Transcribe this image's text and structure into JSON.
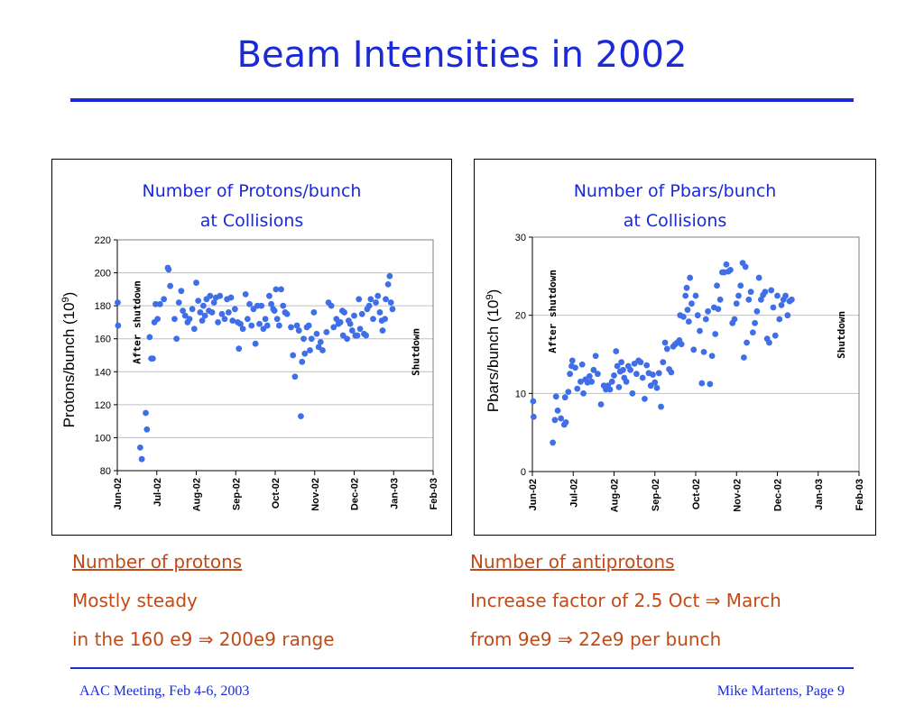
{
  "slide": {
    "title": "Beam Intensities in 2002",
    "footer_left": "AAC Meeting, Feb 4-6, 2003",
    "footer_right": "Mike Martens, Page 9"
  },
  "notes": {
    "left": {
      "heading": "Number of protons ",
      "line1": "Mostly steady",
      "line2": "in the 160 e9 ⇒ 200e9 range"
    },
    "right": {
      "heading": "Number of antiprotons ",
      "line1": "Increase factor of 2.5 Oct ⇒ March",
      "line2": "from 9e9 ⇒ 22e9 per bunch"
    }
  },
  "colors": {
    "accent": "#1a2ad8",
    "marker": "#3f6ee8",
    "note_text": "#c24a16"
  },
  "chart_data": [
    {
      "type": "scatter",
      "title_line1": "Number of Protons/bunch",
      "title_line2": "at Collisions",
      "ylabel_main": "Protons/bunch (10",
      "ylabel_exp": "9",
      "ylabel_close": ")",
      "xlabels": [
        "Jun-02",
        "Jul-02",
        "Aug-02",
        "Sep-02",
        "Oct-02",
        "Nov-02",
        "Dec-02",
        "Jan-03",
        "Feb-03"
      ],
      "xlim": [
        0,
        8
      ],
      "ylim": [
        80,
        220
      ],
      "yticks": [
        80,
        100,
        120,
        140,
        160,
        180,
        200,
        220
      ],
      "annotations": [
        {
          "text": "After shutdown",
          "x": 0.58,
          "y": 170
        },
        {
          "text": "Shutdown",
          "x": 7.65,
          "y": 152
        }
      ],
      "points": [
        [
          0.01,
          182
        ],
        [
          0.02,
          168
        ],
        [
          0.58,
          94
        ],
        [
          0.62,
          87
        ],
        [
          0.72,
          115
        ],
        [
          0.75,
          105
        ],
        [
          0.82,
          161
        ],
        [
          0.86,
          148
        ],
        [
          0.9,
          148
        ],
        [
          0.94,
          170
        ],
        [
          0.97,
          181
        ],
        [
          1.02,
          172
        ],
        [
          1.08,
          181
        ],
        [
          1.18,
          184
        ],
        [
          1.28,
          203
        ],
        [
          1.3,
          202
        ],
        [
          1.34,
          192
        ],
        [
          1.45,
          172
        ],
        [
          1.5,
          160
        ],
        [
          1.56,
          182
        ],
        [
          1.62,
          189
        ],
        [
          1.66,
          177
        ],
        [
          1.72,
          174
        ],
        [
          1.78,
          170
        ],
        [
          1.83,
          172
        ],
        [
          1.9,
          178
        ],
        [
          1.95,
          166
        ],
        [
          2.0,
          194
        ],
        [
          2.05,
          183
        ],
        [
          2.1,
          176
        ],
        [
          2.15,
          171
        ],
        [
          2.18,
          180
        ],
        [
          2.22,
          174
        ],
        [
          2.26,
          184
        ],
        [
          2.32,
          177
        ],
        [
          2.35,
          186
        ],
        [
          2.4,
          176
        ],
        [
          2.45,
          182
        ],
        [
          2.5,
          185
        ],
        [
          2.55,
          170
        ],
        [
          2.6,
          186
        ],
        [
          2.65,
          175
        ],
        [
          2.72,
          172
        ],
        [
          2.78,
          184
        ],
        [
          2.82,
          176
        ],
        [
          2.88,
          185
        ],
        [
          2.92,
          171
        ],
        [
          2.98,
          178
        ],
        [
          3.05,
          170
        ],
        [
          3.08,
          154
        ],
        [
          3.12,
          169
        ],
        [
          3.18,
          166
        ],
        [
          3.25,
          187
        ],
        [
          3.3,
          172
        ],
        [
          3.35,
          181
        ],
        [
          3.4,
          168
        ],
        [
          3.45,
          178
        ],
        [
          3.5,
          157
        ],
        [
          3.55,
          180
        ],
        [
          3.6,
          169
        ],
        [
          3.65,
          180
        ],
        [
          3.7,
          166
        ],
        [
          3.75,
          172
        ],
        [
          3.8,
          168
        ],
        [
          3.85,
          186
        ],
        [
          3.9,
          181
        ],
        [
          3.95,
          178
        ],
        [
          3.98,
          177
        ],
        [
          4.02,
          190
        ],
        [
          4.05,
          172
        ],
        [
          4.1,
          168
        ],
        [
          4.15,
          190
        ],
        [
          4.2,
          180
        ],
        [
          4.25,
          176
        ],
        [
          4.3,
          175
        ],
        [
          4.4,
          167
        ],
        [
          4.45,
          150
        ],
        [
          4.5,
          137
        ],
        [
          4.55,
          168
        ],
        [
          4.6,
          165
        ],
        [
          4.65,
          113
        ],
        [
          4.68,
          146
        ],
        [
          4.72,
          160
        ],
        [
          4.75,
          151
        ],
        [
          4.8,
          167
        ],
        [
          4.85,
          168
        ],
        [
          4.88,
          153
        ],
        [
          4.92,
          160
        ],
        [
          4.98,
          176
        ],
        [
          5.05,
          163
        ],
        [
          5.1,
          155
        ],
        [
          5.15,
          158
        ],
        [
          5.2,
          153
        ],
        [
          5.3,
          164
        ],
        [
          5.35,
          182
        ],
        [
          5.42,
          180
        ],
        [
          5.48,
          167
        ],
        [
          5.55,
          172
        ],
        [
          5.6,
          169
        ],
        [
          5.65,
          170
        ],
        [
          5.7,
          177
        ],
        [
          5.72,
          162
        ],
        [
          5.75,
          176
        ],
        [
          5.82,
          160
        ],
        [
          5.86,
          171
        ],
        [
          5.9,
          169
        ],
        [
          5.95,
          165
        ],
        [
          6.0,
          174
        ],
        [
          6.03,
          162
        ],
        [
          6.08,
          162
        ],
        [
          6.12,
          184
        ],
        [
          6.15,
          166
        ],
        [
          6.2,
          175
        ],
        [
          6.25,
          163
        ],
        [
          6.3,
          162
        ],
        [
          6.33,
          178
        ],
        [
          6.38,
          180
        ],
        [
          6.42,
          184
        ],
        [
          6.48,
          172
        ],
        [
          6.55,
          182
        ],
        [
          6.6,
          186
        ],
        [
          6.65,
          176
        ],
        [
          6.7,
          171
        ],
        [
          6.72,
          165
        ],
        [
          6.78,
          172
        ],
        [
          6.8,
          184
        ],
        [
          6.86,
          193
        ],
        [
          6.9,
          198
        ],
        [
          6.93,
          182
        ],
        [
          6.97,
          178
        ]
      ]
    },
    {
      "type": "scatter",
      "title_line1": "Number of Pbars/bunch",
      "title_line2": "at Collisions",
      "ylabel_main": "Pbars/bunch (10",
      "ylabel_exp": "9",
      "ylabel_close": ")",
      "xlabels": [
        "Jun-02",
        "Jul-02",
        "Aug-02",
        "Sep-02",
        "Oct-02",
        "Nov-02",
        "Dec-02",
        "Jan-03",
        "Feb-03"
      ],
      "xlim": [
        0,
        8
      ],
      "ylim": [
        0,
        30
      ],
      "yticks": [
        0,
        10,
        20,
        30
      ],
      "annotations": [
        {
          "text": "After shutdown",
          "x": 0.58,
          "y": 20.5
        },
        {
          "text": "Shutdown",
          "x": 7.65,
          "y": 17.5
        }
      ],
      "points": [
        [
          0.02,
          9.0
        ],
        [
          0.03,
          7.0
        ],
        [
          0.5,
          3.7
        ],
        [
          0.55,
          6.6
        ],
        [
          0.58,
          9.6
        ],
        [
          0.62,
          7.8
        ],
        [
          0.7,
          6.8
        ],
        [
          0.78,
          6.0
        ],
        [
          0.8,
          9.5
        ],
        [
          0.82,
          6.3
        ],
        [
          0.88,
          10.2
        ],
        [
          0.92,
          12.5
        ],
        [
          0.96,
          13.5
        ],
        [
          0.98,
          14.2
        ],
        [
          1.05,
          13.3
        ],
        [
          1.1,
          10.6
        ],
        [
          1.18,
          11.5
        ],
        [
          1.22,
          13.7
        ],
        [
          1.25,
          10.0
        ],
        [
          1.3,
          11.8
        ],
        [
          1.35,
          11.4
        ],
        [
          1.4,
          12.2
        ],
        [
          1.45,
          11.5
        ],
        [
          1.5,
          13.0
        ],
        [
          1.55,
          14.8
        ],
        [
          1.6,
          12.5
        ],
        [
          1.68,
          8.6
        ],
        [
          1.75,
          11.0
        ],
        [
          1.8,
          10.5
        ],
        [
          1.85,
          11.0
        ],
        [
          1.9,
          10.5
        ],
        [
          1.95,
          11.5
        ],
        [
          2.0,
          12.3
        ],
        [
          2.05,
          15.4
        ],
        [
          2.08,
          13.5
        ],
        [
          2.12,
          10.8
        ],
        [
          2.15,
          12.8
        ],
        [
          2.18,
          14.0
        ],
        [
          2.22,
          13.0
        ],
        [
          2.25,
          12.0
        ],
        [
          2.3,
          11.5
        ],
        [
          2.35,
          13.5
        ],
        [
          2.4,
          13.0
        ],
        [
          2.45,
          10.0
        ],
        [
          2.5,
          13.8
        ],
        [
          2.55,
          12.5
        ],
        [
          2.6,
          14.2
        ],
        [
          2.65,
          14.0
        ],
        [
          2.7,
          12.0
        ],
        [
          2.75,
          9.3
        ],
        [
          2.8,
          13.6
        ],
        [
          2.85,
          12.6
        ],
        [
          2.9,
          11.0
        ],
        [
          2.95,
          12.4
        ],
        [
          3.0,
          11.4
        ],
        [
          3.05,
          10.7
        ],
        [
          3.1,
          12.6
        ],
        [
          3.15,
          8.3
        ],
        [
          3.2,
          14.0
        ],
        [
          3.25,
          16.5
        ],
        [
          3.3,
          15.7
        ],
        [
          3.35,
          13.1
        ],
        [
          3.4,
          12.7
        ],
        [
          3.45,
          16.0
        ],
        [
          3.5,
          16.3
        ],
        [
          3.55,
          16.5
        ],
        [
          3.6,
          16.8
        ],
        [
          3.62,
          20.0
        ],
        [
          3.65,
          16.3
        ],
        [
          3.7,
          19.8
        ],
        [
          3.75,
          22.5
        ],
        [
          3.78,
          23.5
        ],
        [
          3.8,
          20.7
        ],
        [
          3.83,
          19.2
        ],
        [
          3.86,
          24.8
        ],
        [
          3.9,
          21.5
        ],
        [
          3.95,
          15.6
        ],
        [
          4.0,
          22.5
        ],
        [
          4.05,
          20.0
        ],
        [
          4.1,
          18.0
        ],
        [
          4.15,
          11.3
        ],
        [
          4.2,
          15.3
        ],
        [
          4.25,
          19.5
        ],
        [
          4.3,
          20.5
        ],
        [
          4.35,
          11.2
        ],
        [
          4.4,
          14.8
        ],
        [
          4.45,
          21.0
        ],
        [
          4.48,
          17.6
        ],
        [
          4.52,
          23.8
        ],
        [
          4.55,
          20.8
        ],
        [
          4.6,
          22.0
        ],
        [
          4.65,
          25.5
        ],
        [
          4.7,
          25.5
        ],
        [
          4.75,
          26.5
        ],
        [
          4.8,
          25.6
        ],
        [
          4.85,
          25.8
        ],
        [
          4.9,
          19.0
        ],
        [
          4.95,
          19.5
        ],
        [
          5.0,
          21.5
        ],
        [
          5.05,
          22.5
        ],
        [
          5.1,
          23.8
        ],
        [
          5.15,
          26.7
        ],
        [
          5.18,
          14.6
        ],
        [
          5.22,
          26.2
        ],
        [
          5.25,
          16.5
        ],
        [
          5.3,
          22.0
        ],
        [
          5.35,
          23.0
        ],
        [
          5.4,
          17.8
        ],
        [
          5.45,
          19.0
        ],
        [
          5.5,
          20.5
        ],
        [
          5.55,
          24.8
        ],
        [
          5.6,
          22.0
        ],
        [
          5.65,
          22.6
        ],
        [
          5.7,
          23.0
        ],
        [
          5.75,
          17.0
        ],
        [
          5.8,
          16.5
        ],
        [
          5.85,
          23.2
        ],
        [
          5.9,
          21.0
        ],
        [
          5.95,
          17.4
        ],
        [
          6.0,
          22.5
        ],
        [
          6.05,
          19.5
        ],
        [
          6.1,
          21.3
        ],
        [
          6.15,
          22.0
        ],
        [
          6.2,
          22.5
        ],
        [
          6.25,
          20.0
        ],
        [
          6.3,
          21.8
        ],
        [
          6.35,
          22.0
        ]
      ]
    }
  ]
}
